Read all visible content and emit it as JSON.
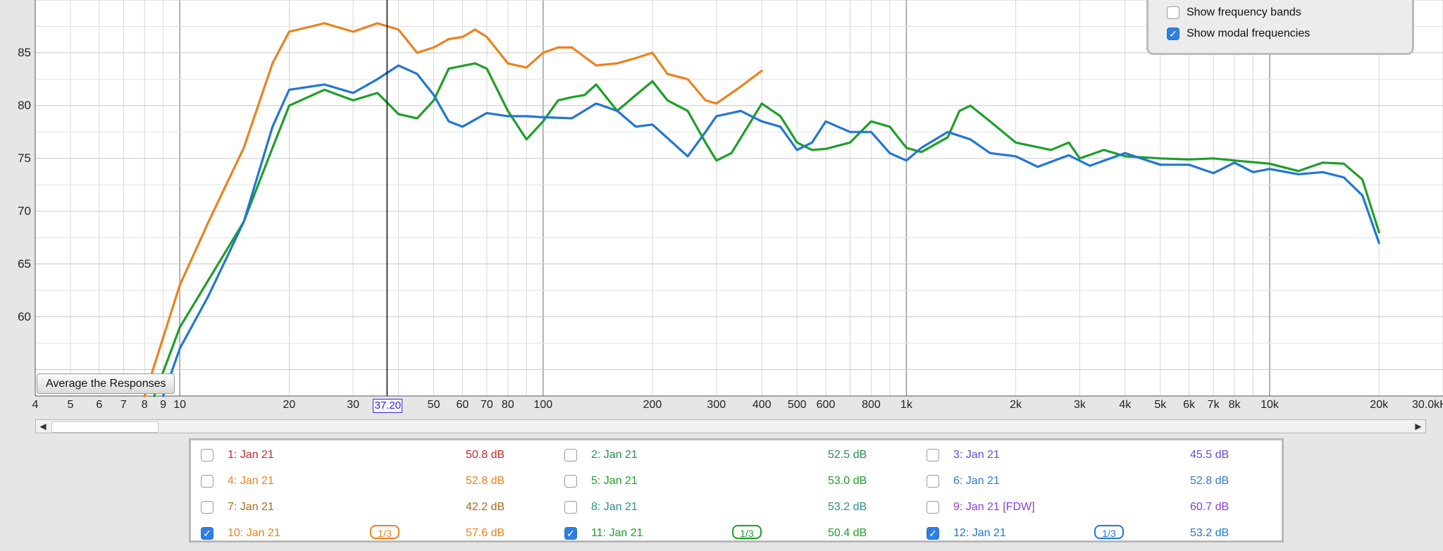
{
  "options": {
    "show_frequency_bands": {
      "label": "Show frequency bands",
      "checked": false
    },
    "show_modal_frequencies": {
      "label": "Show modal frequencies",
      "checked": true
    }
  },
  "average_button": "Average the Responses",
  "cursor_readout": "37.20",
  "chart_data": {
    "type": "line",
    "x_scale": "log",
    "xlim": [
      4,
      30000
    ],
    "ylim": [
      52.5,
      90
    ],
    "grid": true,
    "y_ticks": [
      "85",
      "80",
      "75",
      "70",
      "65",
      "60"
    ],
    "x_ticks": [
      "4",
      "5",
      "6",
      "7",
      "8",
      "9",
      "10",
      "20",
      "30",
      "37.20",
      "50",
      "60",
      "70",
      "80",
      "100",
      "200",
      "300",
      "400",
      "500",
      "600",
      "800",
      "1k",
      "2k",
      "3k",
      "4k",
      "5k",
      "6k",
      "7k",
      "8k",
      "10k",
      "20k",
      "30.0kHz"
    ],
    "cursor_x": 37.2,
    "series": [
      {
        "name": "10: Jan 21",
        "color": "#e8831e",
        "points": [
          [
            8,
            52.5
          ],
          [
            10,
            63
          ],
          [
            12,
            69
          ],
          [
            15,
            76
          ],
          [
            18,
            84
          ],
          [
            20,
            87
          ],
          [
            25,
            87.8
          ],
          [
            30,
            87
          ],
          [
            35,
            87.8
          ],
          [
            40,
            87.2
          ],
          [
            45,
            85
          ],
          [
            50,
            85.5
          ],
          [
            55,
            86.3
          ],
          [
            60,
            86.5
          ],
          [
            65,
            87.2
          ],
          [
            70,
            86.5
          ],
          [
            80,
            84
          ],
          [
            90,
            83.6
          ],
          [
            100,
            85
          ],
          [
            110,
            85.5
          ],
          [
            120,
            85.5
          ],
          [
            140,
            83.8
          ],
          [
            160,
            84
          ],
          [
            180,
            84.5
          ],
          [
            200,
            85
          ],
          [
            220,
            83
          ],
          [
            250,
            82.5
          ],
          [
            280,
            80.5
          ],
          [
            300,
            80.2
          ],
          [
            350,
            81.8
          ],
          [
            400,
            83.3
          ]
        ]
      },
      {
        "name": "11: Jan 21",
        "color": "#1f9e2a",
        "points": [
          [
            8.5,
            52.5
          ],
          [
            10,
            59
          ],
          [
            12,
            63.5
          ],
          [
            15,
            69
          ],
          [
            18,
            76
          ],
          [
            20,
            80
          ],
          [
            25,
            81.5
          ],
          [
            30,
            80.5
          ],
          [
            35,
            81.2
          ],
          [
            40,
            79.2
          ],
          [
            45,
            78.8
          ],
          [
            50,
            80.5
          ],
          [
            55,
            83.5
          ],
          [
            65,
            84
          ],
          [
            70,
            83.5
          ],
          [
            80,
            79.5
          ],
          [
            90,
            76.8
          ],
          [
            100,
            78.5
          ],
          [
            110,
            80.5
          ],
          [
            120,
            80.8
          ],
          [
            130,
            81
          ],
          [
            140,
            82
          ],
          [
            160,
            79.5
          ],
          [
            180,
            81
          ],
          [
            200,
            82.3
          ],
          [
            220,
            80.5
          ],
          [
            250,
            79.5
          ],
          [
            280,
            76.5
          ],
          [
            300,
            74.8
          ],
          [
            330,
            75.5
          ],
          [
            400,
            80.2
          ],
          [
            450,
            79
          ],
          [
            500,
            76.5
          ],
          [
            550,
            75.8
          ],
          [
            600,
            75.9
          ],
          [
            700,
            76.5
          ],
          [
            800,
            78.5
          ],
          [
            900,
            78
          ],
          [
            1000,
            76
          ],
          [
            1100,
            75.6
          ],
          [
            1300,
            77
          ],
          [
            1400,
            79.5
          ],
          [
            1500,
            80
          ],
          [
            1700,
            78.5
          ],
          [
            2000,
            76.5
          ],
          [
            2500,
            75.8
          ],
          [
            2800,
            76.5
          ],
          [
            3000,
            75
          ],
          [
            3500,
            75.8
          ],
          [
            4000,
            75.2
          ],
          [
            5000,
            75
          ],
          [
            6000,
            74.9
          ],
          [
            7000,
            75
          ],
          [
            8000,
            74.8
          ],
          [
            10000,
            74.5
          ],
          [
            12000,
            73.8
          ],
          [
            14000,
            74.6
          ],
          [
            16000,
            74.5
          ],
          [
            18000,
            73
          ],
          [
            20000,
            68
          ]
        ]
      },
      {
        "name": "12: Jan 21",
        "color": "#2276d2",
        "points": [
          [
            9,
            52.5
          ],
          [
            10,
            57
          ],
          [
            12,
            62
          ],
          [
            15,
            69
          ],
          [
            18,
            78
          ],
          [
            20,
            81.5
          ],
          [
            25,
            82
          ],
          [
            30,
            81.2
          ],
          [
            35,
            82.5
          ],
          [
            40,
            83.8
          ],
          [
            45,
            83
          ],
          [
            50,
            81
          ],
          [
            55,
            78.5
          ],
          [
            60,
            78
          ],
          [
            70,
            79.3
          ],
          [
            80,
            79
          ],
          [
            90,
            79
          ],
          [
            100,
            78.9
          ],
          [
            120,
            78.8
          ],
          [
            140,
            80.2
          ],
          [
            160,
            79.5
          ],
          [
            180,
            78
          ],
          [
            200,
            78.2
          ],
          [
            250,
            75.2
          ],
          [
            280,
            77.5
          ],
          [
            300,
            79
          ],
          [
            350,
            79.5
          ],
          [
            400,
            78.5
          ],
          [
            450,
            78
          ],
          [
            500,
            75.8
          ],
          [
            550,
            76.5
          ],
          [
            600,
            78.5
          ],
          [
            700,
            77.5
          ],
          [
            800,
            77.5
          ],
          [
            900,
            75.5
          ],
          [
            1000,
            74.8
          ],
          [
            1100,
            76
          ],
          [
            1300,
            77.5
          ],
          [
            1500,
            76.8
          ],
          [
            1700,
            75.5
          ],
          [
            2000,
            75.2
          ],
          [
            2300,
            74.2
          ],
          [
            2800,
            75.3
          ],
          [
            3200,
            74.3
          ],
          [
            4000,
            75.5
          ],
          [
            5000,
            74.4
          ],
          [
            6000,
            74.4
          ],
          [
            7000,
            73.6
          ],
          [
            8000,
            74.6
          ],
          [
            9000,
            73.7
          ],
          [
            10000,
            74
          ],
          [
            12000,
            73.5
          ],
          [
            14000,
            73.7
          ],
          [
            16000,
            73.2
          ],
          [
            18000,
            71.5
          ],
          [
            20000,
            67
          ]
        ]
      }
    ]
  },
  "measurements": [
    {
      "label": "1: Jan 21",
      "value": "50.8 dB",
      "checked": false,
      "color": "#c42a2a",
      "smoothing": ""
    },
    {
      "label": "2: Jan 21",
      "value": "52.5 dB",
      "checked": false,
      "color": "#2e8a53",
      "smoothing": ""
    },
    {
      "label": "3: Jan 21",
      "value": "45.5 dB",
      "checked": false,
      "color": "#6a4ad6",
      "smoothing": ""
    },
    {
      "label": "4: Jan 21",
      "value": "52.8 dB",
      "checked": false,
      "color": "#e8831e",
      "smoothing": ""
    },
    {
      "label": "5: Jan 21",
      "value": "53.0 dB",
      "checked": false,
      "color": "#1f9e2a",
      "smoothing": ""
    },
    {
      "label": "6: Jan 21",
      "value": "52.8 dB",
      "checked": false,
      "color": "#2f7bd0",
      "smoothing": ""
    },
    {
      "label": "7: Jan 21",
      "value": "42.2 dB",
      "checked": false,
      "color": "#a86a1e",
      "smoothing": ""
    },
    {
      "label": "8: Jan 21",
      "value": "53.2 dB",
      "checked": false,
      "color": "#2d8f86",
      "smoothing": ""
    },
    {
      "label": "9: Jan 21 [FDW]",
      "value": "60.7 dB",
      "checked": false,
      "color": "#8a3fd6",
      "smoothing": ""
    },
    {
      "label": "10: Jan 21",
      "value": "57.6 dB",
      "checked": true,
      "color": "#e8831e",
      "smoothing": "1/3"
    },
    {
      "label": "11: Jan 21",
      "value": "50.4 dB",
      "checked": true,
      "color": "#1f9e2a",
      "smoothing": "1/3"
    },
    {
      "label": "12: Jan 21",
      "value": "53.2 dB",
      "checked": true,
      "color": "#2276d2",
      "smoothing": "1/3"
    }
  ]
}
